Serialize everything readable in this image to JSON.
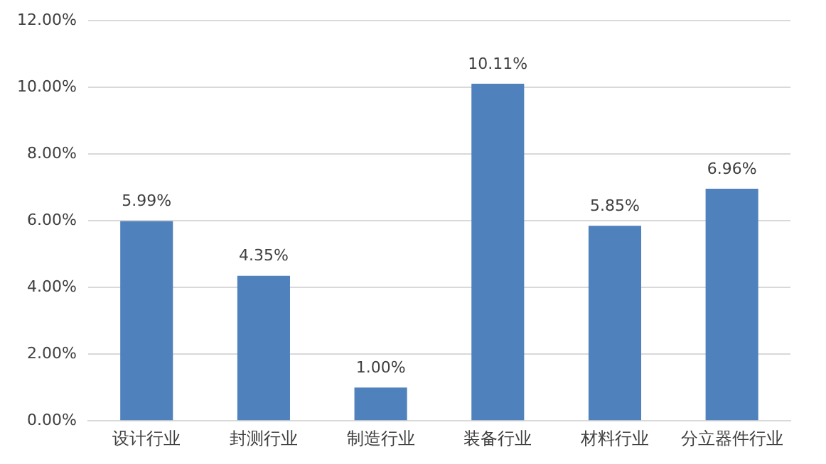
{
  "chart_data": {
    "type": "bar",
    "categories": [
      "设计行业",
      "封测行业",
      "制造行业",
      "装备行业",
      "材料行业",
      "分立器件行业"
    ],
    "values": [
      5.99,
      4.35,
      1.0,
      10.11,
      5.85,
      6.96
    ],
    "value_labels": [
      "5.99%",
      "4.35%",
      "1.00%",
      "10.11%",
      "5.85%",
      "6.96%"
    ],
    "color": "#4f81bd",
    "ylim": [
      0,
      12
    ],
    "yticks": [
      {
        "value": 0,
        "label": "0.00%"
      },
      {
        "value": 2,
        "label": "2.00%"
      },
      {
        "value": 4,
        "label": "4.00%"
      },
      {
        "value": 6,
        "label": "6.00%"
      },
      {
        "value": 8,
        "label": "8.00%"
      },
      {
        "value": 10,
        "label": "10.00%"
      },
      {
        "value": 12,
        "label": "12.00%"
      }
    ],
    "grid": "y",
    "legend": false
  }
}
